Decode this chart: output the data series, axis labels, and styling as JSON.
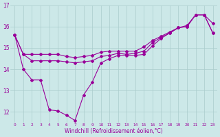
{
  "xlabel": "Windchill (Refroidissement éolien,°C)",
  "background_color": "#cce8e8",
  "line_color": "#990099",
  "grid_color": "#aacccc",
  "hours": [
    0,
    1,
    2,
    3,
    4,
    5,
    6,
    7,
    8,
    9,
    10,
    11,
    12,
    13,
    14,
    15,
    16,
    17,
    18,
    19,
    20,
    21,
    22,
    23
  ],
  "line_upper": [
    15.6,
    14.7,
    14.7,
    14.7,
    14.7,
    14.7,
    14.6,
    14.55,
    14.6,
    14.65,
    14.8,
    14.85,
    14.85,
    14.85,
    14.85,
    15.05,
    15.35,
    15.55,
    15.75,
    15.95,
    16.05,
    16.55,
    16.55,
    15.7
  ],
  "line_mid": [
    15.6,
    14.7,
    14.4,
    14.4,
    14.4,
    14.4,
    14.35,
    14.3,
    14.35,
    14.4,
    14.6,
    14.65,
    14.75,
    14.7,
    14.75,
    14.85,
    15.25,
    15.5,
    15.7,
    15.95,
    16.0,
    16.55,
    16.55,
    16.15
  ],
  "line_lower": [
    15.6,
    14.0,
    13.5,
    13.5,
    12.1,
    12.05,
    11.85,
    11.6,
    12.8,
    13.4,
    14.3,
    14.5,
    14.65,
    14.65,
    14.65,
    14.7,
    15.1,
    15.45,
    15.7,
    15.95,
    16.0,
    16.55,
    16.55,
    15.7
  ],
  "ylim": [
    11.5,
    17.0
  ],
  "yticks": [
    12,
    13,
    14,
    15,
    16,
    17
  ]
}
